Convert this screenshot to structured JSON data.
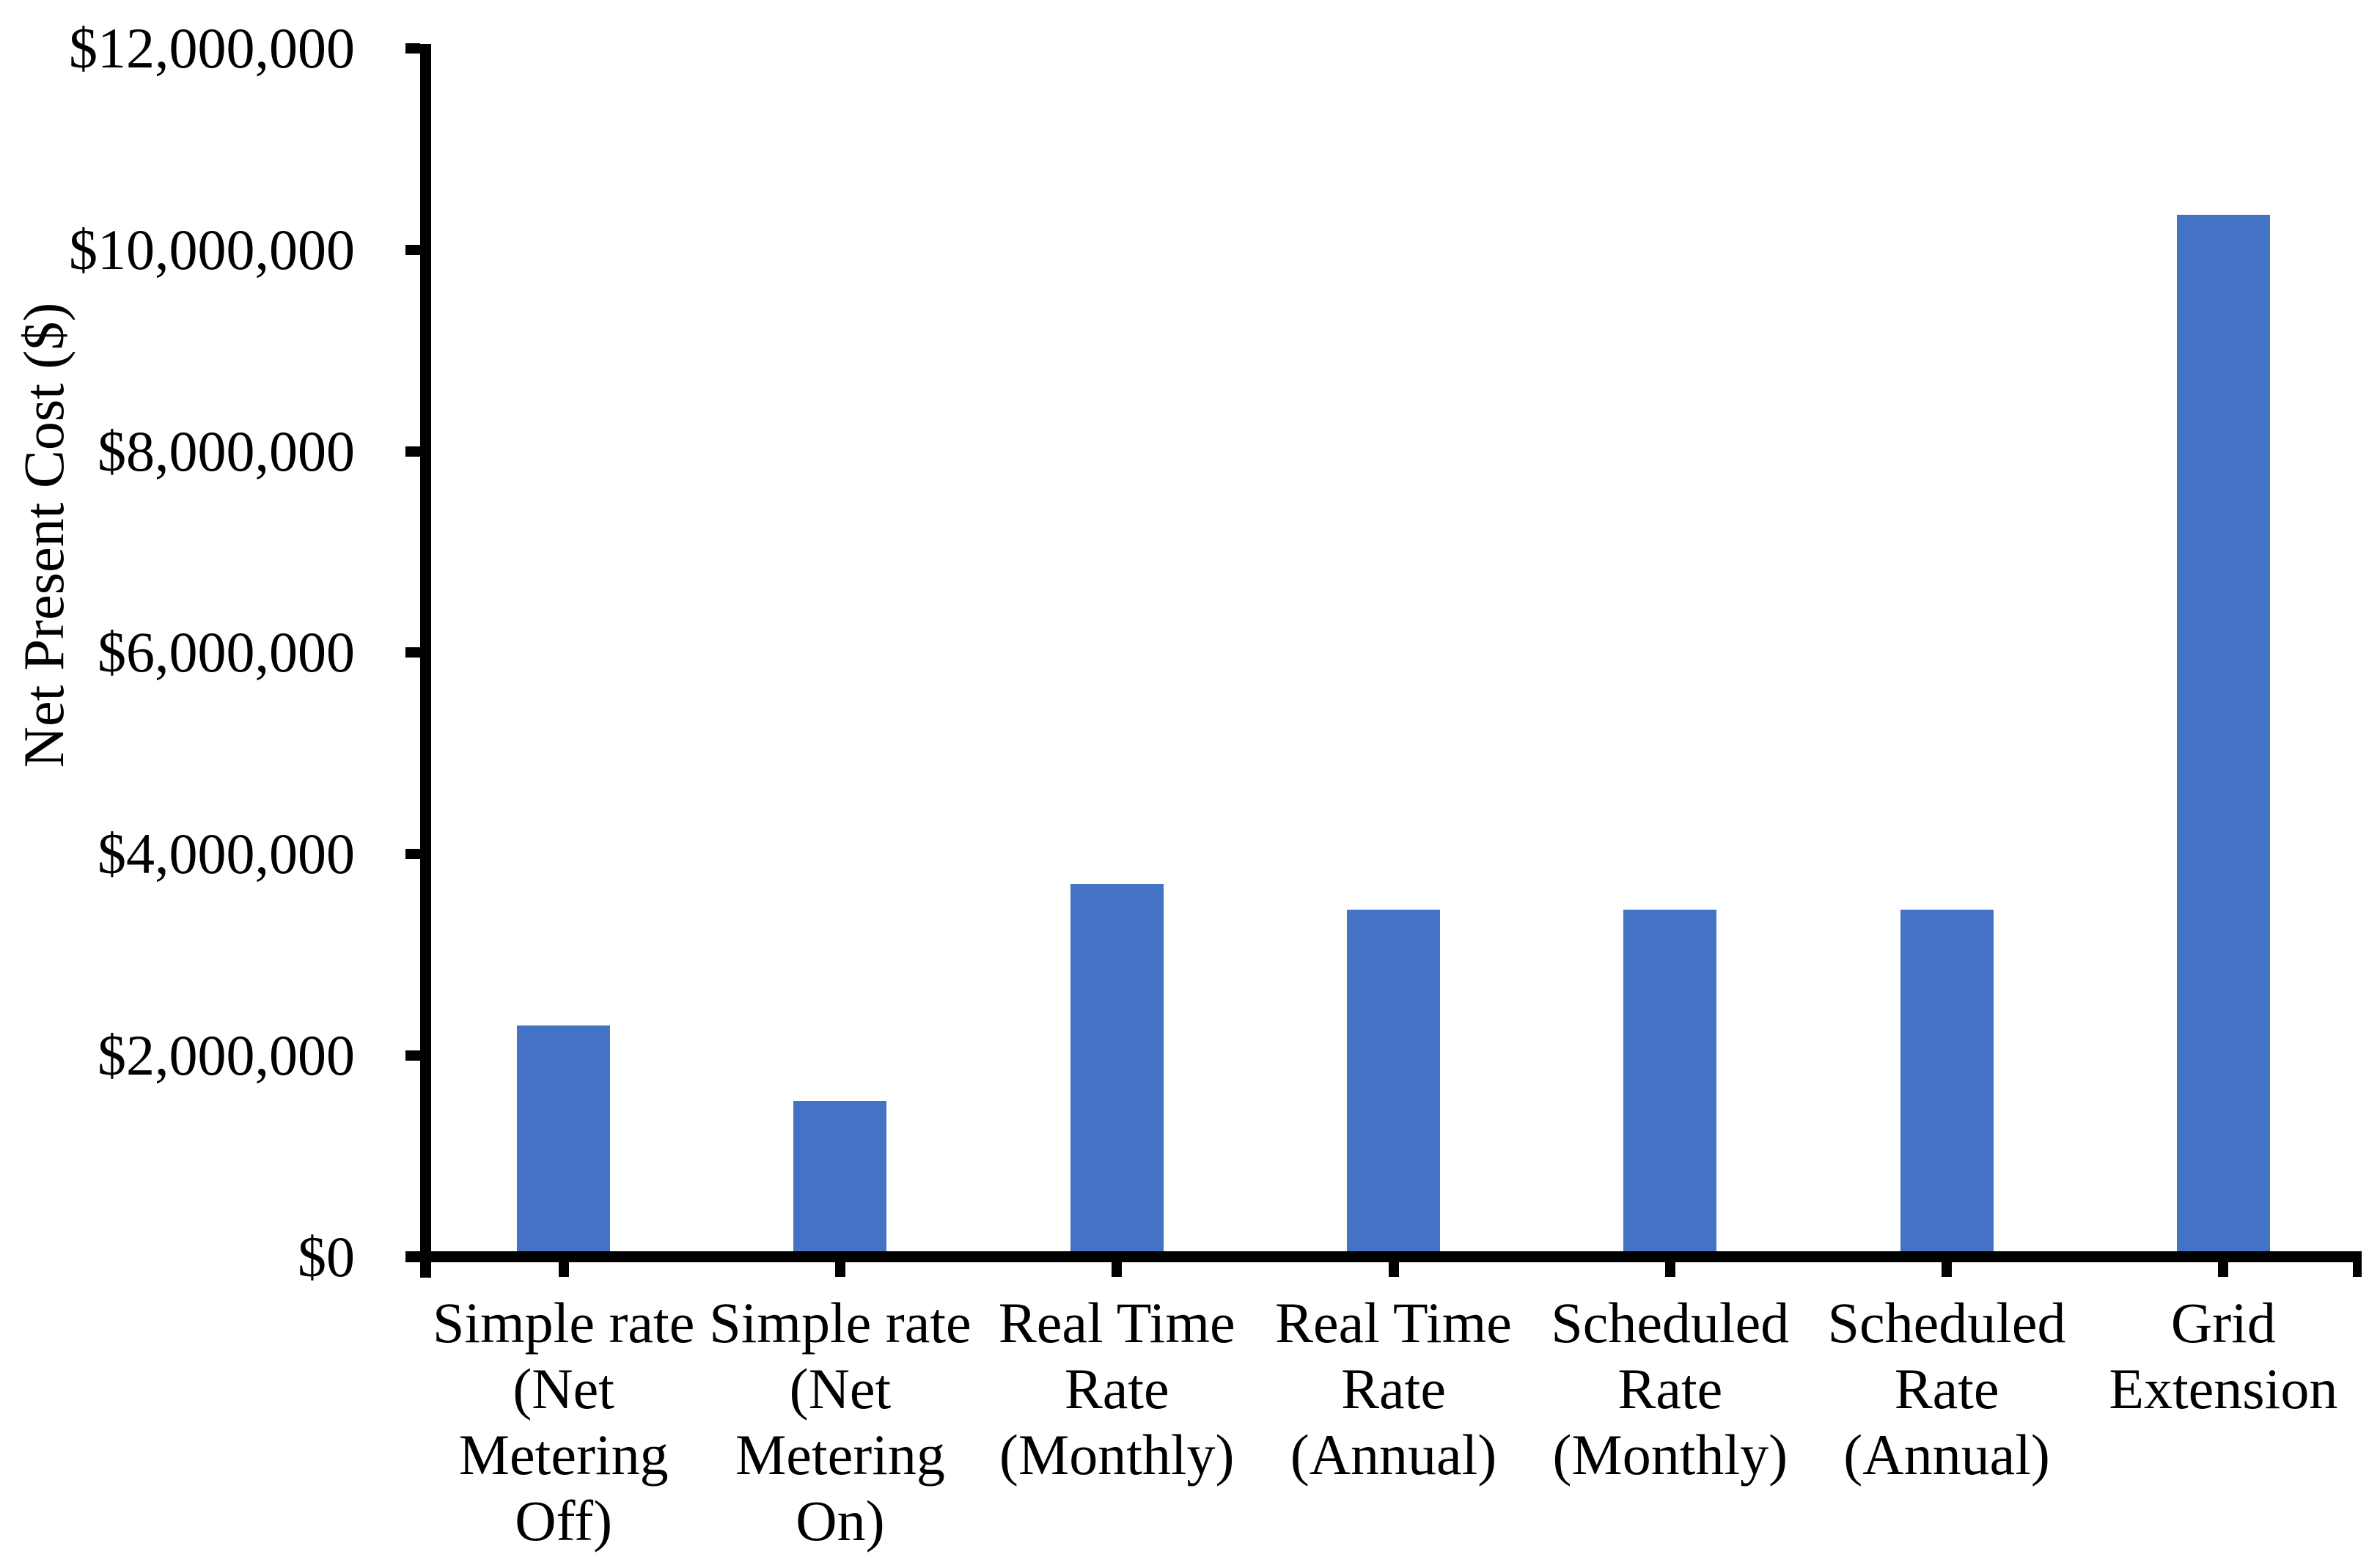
{
  "chart_data": {
    "type": "bar",
    "title": "",
    "ylabel": "Net Present Cost ($)",
    "xlabel": "",
    "categories": [
      "Simple rate\n(Net\nMetering\nOff)",
      "Simple rate\n(Net\nMetering\nOn)",
      "Real Time\nRate\n(Monthly)",
      "Real Time\nRate\n(Annual)",
      "Scheduled\nRate\n(Monthly)",
      "Scheduled\nRate\n(Annual)",
      "Grid\nExtension"
    ],
    "values": [
      2300000,
      1550000,
      3700000,
      3450000,
      3450000,
      3450000,
      10350000
    ],
    "y_ticks": [
      "$0",
      "$2,000,000",
      "$4,000,000",
      "$6,000,000",
      "$8,000,000",
      "$10,000,000",
      "$12,000,000"
    ],
    "ylim": [
      0,
      12000000
    ],
    "grid": false,
    "legend": "none",
    "bar_color": "#4472C4",
    "axis_color": "#000000",
    "text_color": "#000000",
    "background": "#FFFFFF"
  }
}
